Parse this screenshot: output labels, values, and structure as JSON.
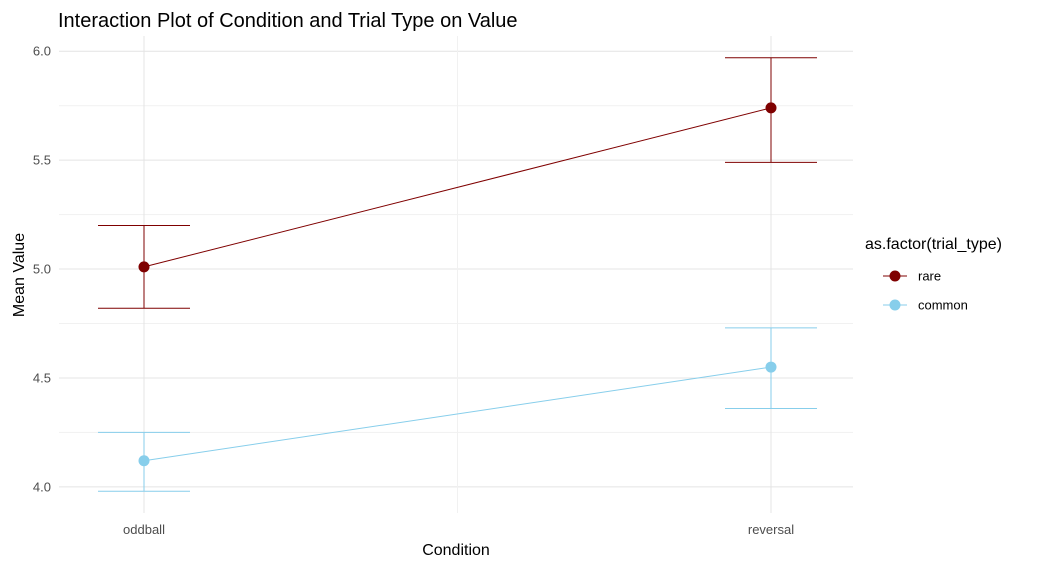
{
  "chart_data": {
    "type": "line",
    "title": "Interaction Plot of Condition and Trial Type on Value",
    "xlabel": "Condition",
    "ylabel": "Mean Value",
    "categories": [
      "oddball",
      "reversal"
    ],
    "ylim": [
      3.88,
      6.07
    ],
    "yticks": [
      "4.0",
      "4.5",
      "5.0",
      "5.5",
      "6.0"
    ],
    "grid": true,
    "legend": {
      "title": "as.factor(trial_type)",
      "position": "right"
    },
    "series": [
      {
        "name": "rare",
        "color": "#7f0000",
        "values": [
          5.01,
          5.74
        ],
        "lower": [
          4.82,
          5.49
        ],
        "upper": [
          5.2,
          5.97
        ]
      },
      {
        "name": "common",
        "color": "#87ceeb",
        "values": [
          4.12,
          4.55
        ],
        "lower": [
          3.98,
          4.36
        ],
        "upper": [
          4.25,
          4.73
        ]
      }
    ]
  }
}
